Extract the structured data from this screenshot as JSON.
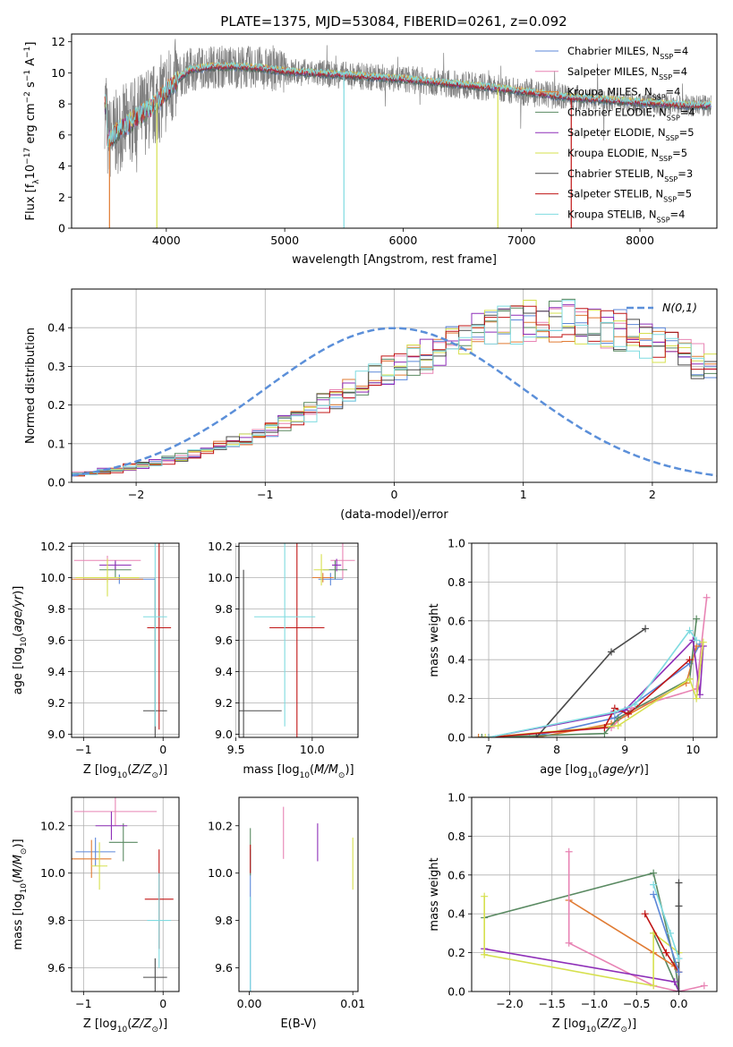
{
  "figure_title": "PLATE=1375, MJD=53084, FIBERID=0261, z=0.092",
  "series": [
    {
      "name": "Chabrier MILES",
      "nssp": "4",
      "color": "#5b87d9"
    },
    {
      "name": "Salpeter MILES",
      "nssp": "4",
      "color": "#e884b4"
    },
    {
      "name": "Kroupa MILES",
      "nssp": "4",
      "color": "#e07b33"
    },
    {
      "name": "Chabrier ELODIE",
      "nssp": "4",
      "color": "#5a8a62"
    },
    {
      "name": "Salpeter ELODIE",
      "nssp": "5",
      "color": "#8e2fb8"
    },
    {
      "name": "Kroupa ELODIE",
      "nssp": "5",
      "color": "#d6e04e"
    },
    {
      "name": "Chabrier STELIB",
      "nssp": "3",
      "color": "#4a4a4a"
    },
    {
      "name": "Salpeter STELIB",
      "nssp": "5",
      "color": "#c01515"
    },
    {
      "name": "Kroupa STELIB",
      "nssp": "4",
      "color": "#7fdbe0"
    }
  ],
  "chart_data": [
    {
      "type": "line",
      "id": "spectrum",
      "xlabel": "wavelength [Angstrom, rest frame]",
      "ylabel_parts": [
        "Flux [f",
        "λ",
        "10",
        "−17",
        " erg cm",
        "−2",
        " s",
        "−1",
        " A",
        "−1",
        "]"
      ],
      "xlim": [
        3200,
        8650
      ],
      "ylim": [
        0,
        12.5
      ],
      "xticks": [
        4000,
        5000,
        6000,
        7000,
        8000
      ],
      "yticks": [
        0,
        2,
        4,
        6,
        8,
        10,
        12
      ],
      "grid": false,
      "legend": "top-right",
      "continuum": {
        "x": [
          3500,
          3600,
          3700,
          3800,
          3900,
          4000,
          4100,
          4200,
          4400,
          4600,
          4800,
          5000,
          5200,
          5400,
          5600,
          5800,
          6000,
          6200,
          6400,
          6600,
          6800,
          7000,
          7200,
          7400,
          7600,
          7800,
          8000,
          8200,
          8400,
          8600
        ],
        "y": [
          5.6,
          6.3,
          6.8,
          7.4,
          7.9,
          8.8,
          9.6,
          10.2,
          10.4,
          10.4,
          10.3,
          10.1,
          10.0,
          9.9,
          9.8,
          9.7,
          9.6,
          9.45,
          9.3,
          9.15,
          9.0,
          8.8,
          8.6,
          8.4,
          8.3,
          8.2,
          8.1,
          8.0,
          7.9,
          7.9
        ]
      },
      "drops_to_zero": [
        3520,
        3920,
        5500,
        6800,
        7420
      ]
    },
    {
      "type": "bar",
      "id": "residual-histogram",
      "xlabel": "(data-model)/error",
      "ylabel": "Normed distribution",
      "xlim": [
        -2.5,
        2.5
      ],
      "ylim": [
        0,
        0.5
      ],
      "xticks": [
        -2,
        -1,
        0,
        1,
        2
      ],
      "yticks": [
        0,
        0.1,
        0.2,
        0.3,
        0.4
      ],
      "grid": true,
      "legend": "top-right",
      "reference_label": "N(0,1)",
      "reference_color": "#5b8fd9",
      "bin_width": 0.1,
      "base_values": [
        0.018,
        0.02,
        0.024,
        0.028,
        0.033,
        0.038,
        0.044,
        0.05,
        0.057,
        0.065,
        0.073,
        0.082,
        0.092,
        0.103,
        0.115,
        0.127,
        0.14,
        0.154,
        0.169,
        0.185,
        0.2,
        0.216,
        0.232,
        0.249,
        0.266,
        0.283,
        0.3,
        0.317,
        0.333,
        0.348,
        0.362,
        0.375,
        0.387,
        0.397,
        0.405,
        0.411,
        0.415,
        0.418,
        0.419,
        0.418,
        0.41,
        0.406,
        0.399,
        0.391,
        0.381,
        0.37,
        0.357,
        0.344,
        0.329,
        0.314,
        0.298,
        0.282,
        0.266,
        0.249,
        0.232,
        0.216,
        0.2,
        0.185,
        0.169,
        0.154,
        0.14,
        0.127,
        0.115,
        0.103,
        0.092,
        0.082,
        0.073,
        0.065,
        0.057,
        0.05,
        0.044,
        0.038,
        0.033,
        0.028,
        0.024,
        0.02,
        0.017,
        0.015,
        0.013,
        0.011,
        0.01,
        0.009,
        0.008
      ]
    },
    {
      "type": "scatter",
      "id": "age-vs-z",
      "xlabel": "Z [log10(Z/Z⊙)]",
      "ylabel": "age  [log10(age/yr)]",
      "xlim": [
        -1.15,
        0.2
      ],
      "ylim": [
        8.98,
        10.22
      ],
      "xticks": [
        -1,
        0
      ],
      "yticks": [
        9.0,
        9.2,
        9.4,
        9.6,
        9.8,
        10.0,
        10.2
      ],
      "grid": true,
      "points": [
        {
          "s": 0,
          "x": -0.55,
          "y": 9.99,
          "ex": 0.45,
          "ey": 0.03
        },
        {
          "s": 1,
          "x": -0.7,
          "y": 10.11,
          "ex": 0.42,
          "ey": 0.03
        },
        {
          "s": 2,
          "x": -0.7,
          "y": 9.99,
          "ex": 0.45,
          "ey": 0.02
        },
        {
          "s": 3,
          "x": -0.6,
          "y": 10.05,
          "ex": 0.2,
          "ey": 0.05
        },
        {
          "s": 4,
          "x": -0.6,
          "y": 10.08,
          "ex": 0.2,
          "ey": 0.03
        },
        {
          "s": 5,
          "x": -0.7,
          "y": 10.0,
          "ex": 0.4,
          "ey": 0.12
        },
        {
          "s": 6,
          "x": -0.1,
          "y": 9.15,
          "ex": 0.15,
          "ey": 0.85
        },
        {
          "s": 7,
          "x": -0.05,
          "y": 9.68,
          "ex": 0.15,
          "ey": 0.65
        },
        {
          "s": 8,
          "x": -0.1,
          "y": 9.75,
          "ex": 0.15,
          "ey": 0.7
        }
      ]
    },
    {
      "type": "scatter",
      "id": "age-vs-mass",
      "xlabel": "mass [log10(M/M⊙)]",
      "ylabel": "",
      "xlim": [
        9.52,
        10.3
      ],
      "ylim": [
        8.98,
        10.22
      ],
      "xticks": [
        9.5,
        10.0
      ],
      "yticks": [
        9.0,
        9.2,
        9.4,
        9.6,
        9.8,
        10.0,
        10.2
      ],
      "grid": true,
      "points": [
        {
          "s": 0,
          "x": 10.12,
          "y": 9.99,
          "ex": 0.08,
          "ey": 0.04
        },
        {
          "s": 1,
          "x": 10.2,
          "y": 10.11,
          "ex": 0.08,
          "ey": 0.12
        },
        {
          "s": 2,
          "x": 10.07,
          "y": 10.0,
          "ex": 0.07,
          "ey": 0.03
        },
        {
          "s": 3,
          "x": 10.15,
          "y": 10.05,
          "ex": 0.08,
          "ey": 0.06
        },
        {
          "s": 4,
          "x": 10.16,
          "y": 10.08,
          "ex": 0.03,
          "ey": 0.04
        },
        {
          "s": 5,
          "x": 10.06,
          "y": 10.05,
          "ex": 0.05,
          "ey": 0.1
        },
        {
          "s": 6,
          "x": 9.55,
          "y": 9.15,
          "ex": 0.25,
          "ey": 0.9
        },
        {
          "s": 7,
          "x": 9.9,
          "y": 9.68,
          "ex": 0.18,
          "ey": 0.7
        },
        {
          "s": 8,
          "x": 9.82,
          "y": 9.75,
          "ex": 0.2,
          "ey": 0.7
        }
      ]
    },
    {
      "type": "line",
      "id": "mass-weight-vs-age",
      "xlabel": "age  [log10(age/yr)]",
      "ylabel": "mass weight",
      "xlim": [
        6.75,
        10.35
      ],
      "ylim": [
        0,
        1.0
      ],
      "xticks": [
        7,
        8,
        9,
        10
      ],
      "yticks": [
        0.0,
        0.2,
        0.4,
        0.6,
        0.8,
        1.0
      ],
      "grid": true,
      "lines": [
        {
          "s": 0,
          "x": [
            6.9,
            7.6,
            8.85,
            9.95,
            10.1
          ],
          "y": [
            0,
            0,
            0.1,
            0.38,
            0.48
          ]
        },
        {
          "s": 1,
          "x": [
            7.0,
            8.8,
            9.1,
            10.05,
            10.2
          ],
          "y": [
            0,
            0.05,
            0.15,
            0.25,
            0.72
          ]
        },
        {
          "s": 2,
          "x": [
            6.85,
            7.7,
            8.8,
            9.9,
            10.05
          ],
          "y": [
            0,
            0,
            0.07,
            0.28,
            0.47
          ]
        },
        {
          "s": 3,
          "x": [
            6.9,
            8.7,
            8.9,
            9.95,
            10.05
          ],
          "y": [
            0,
            0.02,
            0.1,
            0.3,
            0.61
          ]
        },
        {
          "s": 4,
          "x": [
            7.0,
            8.8,
            9.0,
            10.0,
            10.1,
            10.15
          ],
          "y": [
            0,
            0.12,
            0.14,
            0.5,
            0.22,
            0.47
          ]
        },
        {
          "s": 5,
          "x": [
            6.95,
            8.9,
            9.95,
            10.05,
            10.15
          ],
          "y": [
            0,
            0.06,
            0.3,
            0.2,
            0.49
          ]
        },
        {
          "s": 6,
          "x": [
            7.7,
            8.8,
            9.3
          ],
          "y": [
            0,
            0.44,
            0.56
          ]
        },
        {
          "s": 7,
          "x": [
            7.0,
            8.7,
            8.85,
            9.05,
            9.95
          ],
          "y": [
            0,
            0.05,
            0.15,
            0.12,
            0.4
          ]
        },
        {
          "s": 8,
          "x": [
            7.0,
            8.85,
            9.15,
            9.95,
            10.05
          ],
          "y": [
            0,
            0.13,
            0.17,
            0.55,
            0.5
          ]
        }
      ]
    },
    {
      "type": "scatter",
      "id": "mass-vs-z",
      "xlabel": "Z [log10(Z/Z⊙)]",
      "ylabel": "mass [log10(M/M⊙)]",
      "xlim": [
        -1.15,
        0.2
      ],
      "ylim": [
        9.5,
        10.32
      ],
      "xticks": [
        -1,
        0
      ],
      "yticks": [
        9.6,
        9.8,
        10.0,
        10.2
      ],
      "grid": true,
      "points": [
        {
          "s": 0,
          "x": -0.85,
          "y": 10.09,
          "ex": 0.25,
          "ey": 0.06
        },
        {
          "s": 1,
          "x": -0.6,
          "y": 10.26,
          "ex": 0.52,
          "ey": 0.06
        },
        {
          "s": 2,
          "x": -0.9,
          "y": 10.06,
          "ex": 0.25,
          "ey": 0.08
        },
        {
          "s": 3,
          "x": -0.5,
          "y": 10.13,
          "ex": 0.18,
          "ey": 0.08
        },
        {
          "s": 4,
          "x": -0.65,
          "y": 10.2,
          "ex": 0.2,
          "ey": 0.06
        },
        {
          "s": 5,
          "x": -0.8,
          "y": 10.03,
          "ex": 0.1,
          "ey": 0.1
        },
        {
          "s": 6,
          "x": -0.1,
          "y": 9.56,
          "ex": 0.15,
          "ey": 0.08
        },
        {
          "s": 7,
          "x": -0.05,
          "y": 9.89,
          "ex": 0.18,
          "ey": 0.21
        },
        {
          "s": 8,
          "x": -0.05,
          "y": 9.8,
          "ex": 0.15,
          "ey": 0.2
        }
      ]
    },
    {
      "type": "scatter",
      "id": "mass-vs-ebv",
      "xlabel": "E(B-V)",
      "ylabel": "",
      "xlim": [
        -0.001,
        0.0105
      ],
      "ylim": [
        9.5,
        10.32
      ],
      "xticks": [
        0.0,
        0.01
      ],
      "ytick_labels_override": [
        "9.6",
        "9.8",
        "10.0",
        "10.2"
      ],
      "yticks": [
        9.6,
        9.8,
        10.0,
        10.2
      ],
      "grid": false,
      "points": [
        {
          "s": 0,
          "x": 0.0001,
          "y": 9.8,
          "ex": 0,
          "ey": 0.3
        },
        {
          "s": 3,
          "x": 0.0001,
          "y": 10.09,
          "ex": 0,
          "ey": 0.1
        },
        {
          "s": 7,
          "x": 0.0001,
          "y": 10.06,
          "ex": 0,
          "ey": 0.06
        },
        {
          "s": 1,
          "x": 0.0033,
          "y": 10.17,
          "ex": 0,
          "ey": 0.11
        },
        {
          "s": 4,
          "x": 0.0066,
          "y": 10.13,
          "ex": 0,
          "ey": 0.08
        },
        {
          "s": 5,
          "x": 0.01,
          "y": 10.04,
          "ex": 0,
          "ey": 0.11
        },
        {
          "s": 8,
          "x": 0.0001,
          "y": 9.7,
          "ex": 0,
          "ey": 0.2
        }
      ]
    },
    {
      "type": "line",
      "id": "mass-weight-vs-z",
      "xlabel": "Z [log10(Z/Z⊙)]",
      "ylabel": "mass weight",
      "xlim": [
        -2.45,
        0.45
      ],
      "ylim": [
        0,
        1.0
      ],
      "xticks": [
        -2.0,
        -1.5,
        -1.0,
        -0.5,
        0.0
      ],
      "yticks": [
        0.0,
        0.2,
        0.4,
        0.6,
        0.8,
        1.0
      ],
      "grid": true,
      "lines": [
        {
          "s": 3,
          "x": [
            -2.3,
            -0.3,
            -0.05,
            0.0,
            -0.3
          ],
          "y": [
            0.38,
            0.61,
            0.15,
            0.0,
            0.3
          ]
        },
        {
          "s": 2,
          "x": [
            -1.3,
            -0.3,
            -0.05
          ],
          "y": [
            0.47,
            0.2,
            0.13
          ]
        },
        {
          "s": 1,
          "x": [
            -1.3,
            -1.3,
            -0.3,
            0.0,
            0.3
          ],
          "y": [
            0.72,
            0.25,
            0.03,
            0.0,
            0.03
          ]
        },
        {
          "s": 4,
          "x": [
            -2.3,
            -0.05,
            0.0
          ],
          "y": [
            0.22,
            0.05,
            0.0
          ]
        },
        {
          "s": 5,
          "x": [
            -2.3,
            -2.3,
            -0.3,
            -0.3,
            0.0
          ],
          "y": [
            0.49,
            0.19,
            0.03,
            0.3,
            0.2
          ]
        },
        {
          "s": 6,
          "x": [
            0.0,
            0.0,
            0.0
          ],
          "y": [
            0.56,
            0.44,
            0.0
          ]
        },
        {
          "s": 7,
          "x": [
            -0.4,
            -0.15,
            0.0
          ],
          "y": [
            0.4,
            0.2,
            0.1
          ]
        },
        {
          "s": 8,
          "x": [
            -0.3,
            -0.1,
            0.0
          ],
          "y": [
            0.55,
            0.3,
            0.17
          ]
        },
        {
          "s": 0,
          "x": [
            -0.3,
            0.0
          ],
          "y": [
            0.5,
            0.1
          ]
        }
      ]
    }
  ]
}
